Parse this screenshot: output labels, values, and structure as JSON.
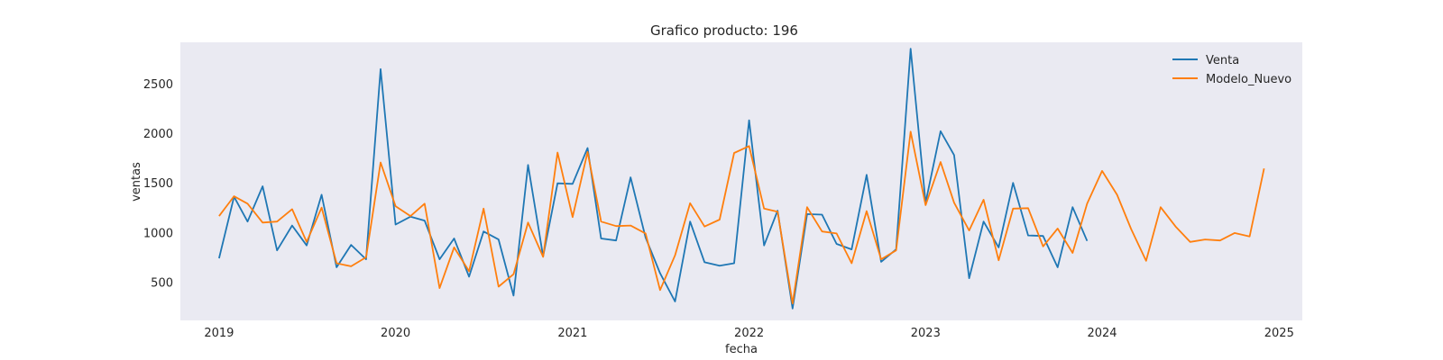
{
  "chart_data": {
    "type": "line",
    "title": "Grafico producto: 196",
    "xlabel": "fecha",
    "ylabel": "ventas",
    "xlim": [
      "2018-10-13",
      "2025-02-18"
    ],
    "ylim": [
      115,
      2915
    ],
    "x_ticks": [
      "2019",
      "2020",
      "2021",
      "2022",
      "2023",
      "2024",
      "2025"
    ],
    "y_ticks": [
      500,
      1000,
      1500,
      2000,
      2500
    ],
    "grid": false,
    "legend": "top-right",
    "background": "#eaeaf2",
    "series": [
      {
        "name": "Venta",
        "color": "#1f77b4",
        "x": [
          "2019-01",
          "2019-02",
          "2019-03",
          "2019-04",
          "2019-05",
          "2019-06",
          "2019-07",
          "2019-08",
          "2019-09",
          "2019-10",
          "2019-11",
          "2019-12",
          "2020-01",
          "2020-02",
          "2020-03",
          "2020-04",
          "2020-05",
          "2020-06",
          "2020-07",
          "2020-08",
          "2020-09",
          "2020-10",
          "2020-11",
          "2020-12",
          "2021-01",
          "2021-02",
          "2021-03",
          "2021-04",
          "2021-05",
          "2021-06",
          "2021-07",
          "2021-08",
          "2021-09",
          "2021-10",
          "2021-11",
          "2021-12",
          "2022-01",
          "2022-02",
          "2022-03",
          "2022-04",
          "2022-05",
          "2022-06",
          "2022-07",
          "2022-08",
          "2022-09",
          "2022-10",
          "2022-11",
          "2022-12",
          "2023-01",
          "2023-02",
          "2023-03",
          "2023-04",
          "2023-05",
          "2023-06",
          "2023-07",
          "2023-08",
          "2023-09",
          "2023-10",
          "2023-11",
          "2023-12"
        ],
        "values": [
          740,
          1360,
          1110,
          1465,
          820,
          1070,
          870,
          1380,
          650,
          875,
          730,
          2645,
          1080,
          1160,
          1120,
          730,
          940,
          555,
          1010,
          930,
          365,
          1680,
          760,
          1495,
          1490,
          1850,
          940,
          920,
          1555,
          950,
          590,
          305,
          1110,
          700,
          665,
          690,
          2130,
          870,
          1220,
          235,
          1185,
          1180,
          885,
          830,
          1580,
          705,
          830,
          2850,
          1300,
          2020,
          1780,
          540,
          1110,
          850,
          1500,
          970,
          965,
          650,
          1255,
          915
        ]
      },
      {
        "name": "Modelo_Nuevo",
        "color": "#ff7f0e",
        "x": [
          "2019-01",
          "2019-02",
          "2019-03",
          "2019-04",
          "2019-05",
          "2019-06",
          "2019-07",
          "2019-08",
          "2019-09",
          "2019-10",
          "2019-11",
          "2019-12",
          "2020-01",
          "2020-02",
          "2020-03",
          "2020-04",
          "2020-05",
          "2020-06",
          "2020-07",
          "2020-08",
          "2020-09",
          "2020-10",
          "2020-11",
          "2020-12",
          "2021-01",
          "2021-02",
          "2021-03",
          "2021-04",
          "2021-05",
          "2021-06",
          "2021-07",
          "2021-08",
          "2021-09",
          "2021-10",
          "2021-11",
          "2021-12",
          "2022-01",
          "2022-02",
          "2022-03",
          "2022-04",
          "2022-05",
          "2022-06",
          "2022-07",
          "2022-08",
          "2022-09",
          "2022-10",
          "2022-11",
          "2022-12",
          "2023-01",
          "2023-02",
          "2023-03",
          "2023-04",
          "2023-05",
          "2023-06",
          "2023-07",
          "2023-08",
          "2023-09",
          "2023-10",
          "2023-11",
          "2023-12",
          "2024-01",
          "2024-02",
          "2024-03",
          "2024-04",
          "2024-05",
          "2024-06",
          "2024-07",
          "2024-08",
          "2024-09",
          "2024-10",
          "2024-11",
          "2024-12"
        ],
        "values": [
          1165,
          1365,
          1290,
          1100,
          1110,
          1235,
          905,
          1250,
          690,
          660,
          750,
          1705,
          1265,
          1165,
          1290,
          440,
          850,
          610,
          1240,
          455,
          580,
          1100,
          755,
          1805,
          1155,
          1810,
          1110,
          1065,
          1070,
          990,
          420,
          770,
          1295,
          1060,
          1130,
          1800,
          1870,
          1240,
          1210,
          285,
          1255,
          1010,
          990,
          690,
          1215,
          730,
          820,
          2015,
          1275,
          1710,
          1300,
          1020,
          1330,
          720,
          1240,
          1245,
          860,
          1040,
          795,
          1290,
          1620,
          1380,
          1035,
          715,
          1255,
          1060,
          905,
          930,
          920,
          995,
          960,
          1645
        ]
      }
    ]
  }
}
